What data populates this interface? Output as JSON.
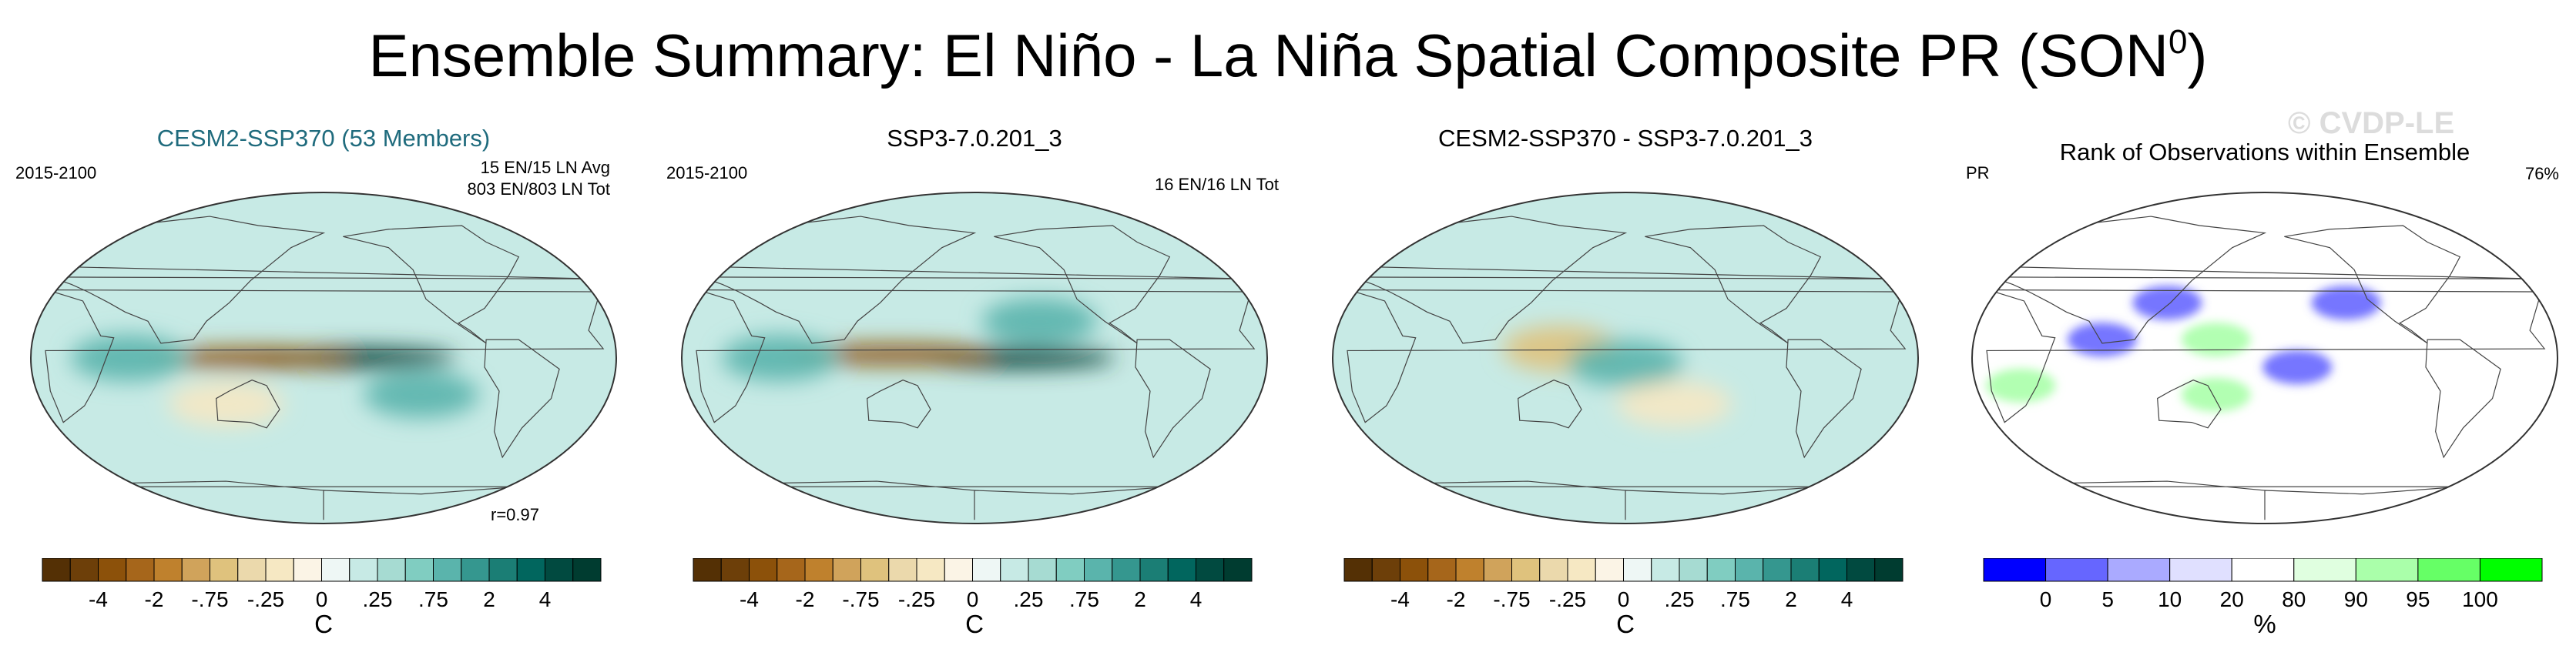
{
  "title": "Ensemble Summary: El Niño - La Niña Spatial Composite PR (SON",
  "title_sup": "0",
  "title_close": ")",
  "watermark": "© CVDP-LE",
  "chart_data": [
    {
      "type": "heatmap",
      "title": "CESM2-SSP370 (53 Members)",
      "left_label": "2015-2100",
      "right_labels": [
        "15 EN/15 LN Avg",
        "803 EN/803 LN Tot"
      ],
      "corner_label": "r=0.97",
      "projection": "robinson, 180 centered",
      "colorbar": {
        "tick_labels": [
          "-4",
          "-2",
          "-.75",
          "-.25",
          "0",
          ".25",
          ".75",
          "2",
          "4"
        ],
        "unit": "C",
        "colors": [
          "#543005",
          "#6d3f09",
          "#8c510a",
          "#a6661b",
          "#bf812d",
          "#d0a35b",
          "#dfc27d",
          "#ebd9ac",
          "#f6e8c3",
          "#fbf4e6",
          "#eef7f5",
          "#c7eae5",
          "#a6dbd2",
          "#80cdc1",
          "#5ab4ac",
          "#35978f",
          "#1b7e75",
          "#01665e",
          "#014a40",
          "#003c30"
        ]
      },
      "anomaly_blobs": [
        {
          "lon": -160,
          "lat": 0,
          "value": 5
        },
        {
          "lon": 135,
          "lat": 0,
          "value": -4
        },
        {
          "lon": -120,
          "lat": -20,
          "value": 2
        },
        {
          "lon": 60,
          "lat": 0,
          "value": 2
        },
        {
          "lon": 120,
          "lat": -25,
          "value": -1
        }
      ]
    },
    {
      "type": "heatmap",
      "title": "SSP3-7.0.201_3",
      "left_label": "2015-2100",
      "right_labels": [
        "16 EN/16 LN Tot"
      ],
      "corner_label": "",
      "projection": "robinson, 180 centered",
      "colorbar": {
        "tick_labels": [
          "-4",
          "-2",
          "-.75",
          "-.25",
          "0",
          ".25",
          ".75",
          "2",
          "4"
        ],
        "unit": "C",
        "colors": [
          "#543005",
          "#6d3f09",
          "#8c510a",
          "#a6661b",
          "#bf812d",
          "#d0a35b",
          "#dfc27d",
          "#ebd9ac",
          "#f6e8c3",
          "#fbf4e6",
          "#eef7f5",
          "#c7eae5",
          "#a6dbd2",
          "#80cdc1",
          "#5ab4ac",
          "#35978f",
          "#1b7e75",
          "#01665e",
          "#014a40",
          "#003c30"
        ]
      },
      "anomaly_blobs": [
        {
          "lon": -155,
          "lat": 0,
          "value": 5
        },
        {
          "lon": 130,
          "lat": 2,
          "value": -4
        },
        {
          "lon": -140,
          "lat": 20,
          "value": 2
        },
        {
          "lon": 60,
          "lat": 0,
          "value": 2
        }
      ]
    },
    {
      "type": "heatmap",
      "title": "CESM2-SSP370 - SSP3-7.0.201_3",
      "left_label": "",
      "right_labels": [],
      "corner_label": "",
      "projection": "robinson, 180 centered",
      "colorbar": {
        "tick_labels": [
          "-4",
          "-2",
          "-.75",
          "-.25",
          "0",
          ".25",
          ".75",
          "2",
          "4"
        ],
        "unit": "C",
        "colors": [
          "#543005",
          "#6d3f09",
          "#8c510a",
          "#a6661b",
          "#bf812d",
          "#d0a35b",
          "#dfc27d",
          "#ebd9ac",
          "#f6e8c3",
          "#fbf4e6",
          "#eef7f5",
          "#c7eae5",
          "#a6dbd2",
          "#80cdc1",
          "#5ab4ac",
          "#35978f",
          "#1b7e75",
          "#01665e",
          "#014a40",
          "#003c30"
        ]
      },
      "anomaly_blobs": [
        {
          "lon": 140,
          "lat": 5,
          "value": -2
        },
        {
          "lon": 180,
          "lat": -3,
          "value": 2
        },
        {
          "lon": -150,
          "lat": -25,
          "value": -1
        }
      ]
    },
    {
      "type": "heatmap",
      "title": "Rank of Observations within Ensemble",
      "left_label": "PR",
      "right_labels": [
        "76%"
      ],
      "corner_label": "",
      "projection": "robinson, 180 centered",
      "colorbar": {
        "tick_labels": [
          "0",
          "5",
          "10",
          "20",
          "80",
          "90",
          "95",
          "100"
        ],
        "unit": "%",
        "colors": [
          "#0000ff",
          "#6666ff",
          "#aaaaff",
          "#e0e0ff",
          "#ffffff",
          "#e0ffe0",
          "#aaffaa",
          "#66ff66",
          "#00ff00"
        ]
      },
      "rank_patches": [
        {
          "lon": 120,
          "lat": 30,
          "value": 5
        },
        {
          "lon": 150,
          "lat": 10,
          "value": 95
        },
        {
          "lon": 150,
          "lat": -20,
          "value": 95
        },
        {
          "lon": -130,
          "lat": 30,
          "value": 5
        },
        {
          "lon": -160,
          "lat": -5,
          "value": 5
        },
        {
          "lon": 30,
          "lat": -15,
          "value": 95
        },
        {
          "lon": 80,
          "lat": 10,
          "value": 5
        }
      ]
    }
  ]
}
